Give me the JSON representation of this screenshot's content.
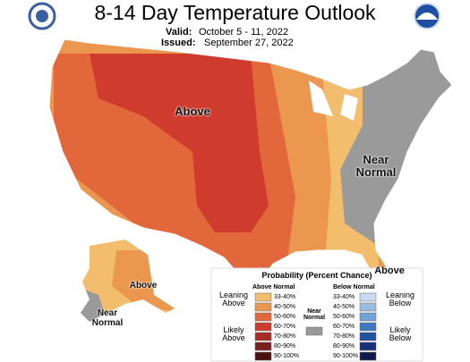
{
  "header": {
    "title": "8-14 Day Temperature Outlook",
    "valid_label": "Valid:",
    "valid": "October 5 - 11, 2022",
    "issued_label": "Issued:",
    "issued": "September 27, 2022"
  },
  "map": {
    "labels": [
      "Above",
      "Near Normal",
      "Above",
      "Near Normal",
      "Above"
    ]
  },
  "legend": {
    "title": "Probability (Percent Chance)",
    "above_header": "Above Normal",
    "below_header": "Below Normal",
    "near_label": "Near Normal",
    "near_color": "#9a9a9a",
    "above": [
      {
        "label": "33-40%",
        "color": "#f3bd6e"
      },
      {
        "label": "40-50%",
        "color": "#eb9750"
      },
      {
        "label": "50-60%",
        "color": "#e2683c"
      },
      {
        "label": "60-70%",
        "color": "#cf3b2c"
      },
      {
        "label": "70-80%",
        "color": "#a82c26"
      },
      {
        "label": "80-90%",
        "color": "#7c1f1f"
      },
      {
        "label": "90-100%",
        "color": "#4c1010"
      }
    ],
    "below": [
      {
        "label": "33-40%",
        "color": "#c9d9ef"
      },
      {
        "label": "40-50%",
        "color": "#9bbbe2"
      },
      {
        "label": "50-60%",
        "color": "#70a1d8"
      },
      {
        "label": "60-70%",
        "color": "#3f79c1"
      },
      {
        "label": "70-80%",
        "color": "#2152a2"
      },
      {
        "label": "80-90%",
        "color": "#1b307a"
      },
      {
        "label": "90-100%",
        "color": "#10194a"
      }
    ],
    "row_labels": [
      "Leaning Above",
      "Likely Above",
      "Leaning Below",
      "Likely Below"
    ]
  }
}
